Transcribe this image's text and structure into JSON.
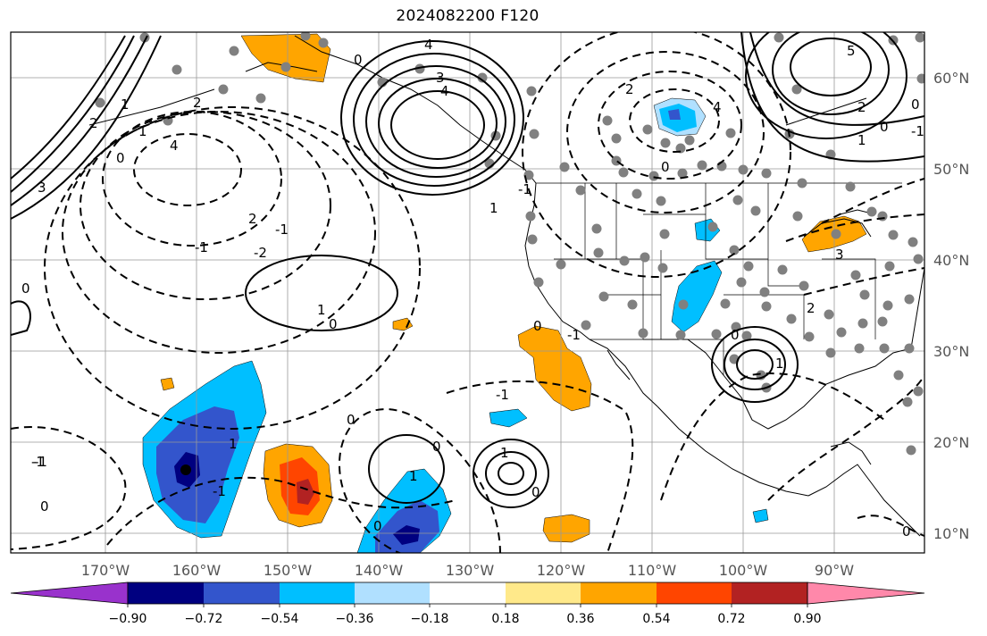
{
  "title": "2024082200 F120",
  "lon_labels": [
    "170°W",
    "160°W",
    "150°W",
    "140°W",
    "130°W",
    "120°W",
    "110°W",
    "100°W",
    "90°W"
  ],
  "lat_labels": [
    "60°N",
    "50°N",
    "40°N",
    "30°N",
    "20°N",
    "10°N"
  ],
  "colorbar": {
    "tick_labels": [
      "−0.90",
      "−0.72",
      "−0.54",
      "−0.36",
      "−0.18",
      "0.18",
      "0.36",
      "0.54",
      "0.72",
      "0.90"
    ],
    "colors": [
      "#9932cc",
      "#000080",
      "#3355cc",
      "#00bfff",
      "#b0e0ff",
      "#ffffff",
      "#ffe98a",
      "#ffa500",
      "#ff4500",
      "#b22222",
      "#ff88aa"
    ]
  },
  "contour_labels": [
    "3",
    "4",
    "5",
    "4",
    "3",
    "2",
    "1",
    "0",
    "-1",
    "-2",
    "2",
    "0",
    "4",
    "2",
    "1",
    "0",
    "-1",
    "1",
    "0",
    "1",
    "0",
    "0",
    "0",
    "-1",
    "0",
    "-1",
    "1",
    "1",
    "0",
    "2",
    "3",
    "0",
    "-1",
    "2",
    "1",
    "0",
    "0",
    "-1",
    "0",
    "1",
    "4",
    "-1",
    "0",
    "-1",
    "2",
    "0",
    "1",
    "-1"
  ],
  "fill_colors": {
    "orange": "#ffa500",
    "red": "#ff4500",
    "darkred": "#b22222",
    "blue_light": "#00bfff",
    "blue_mid": "#3355cc",
    "blue_dark": "#000080"
  }
}
